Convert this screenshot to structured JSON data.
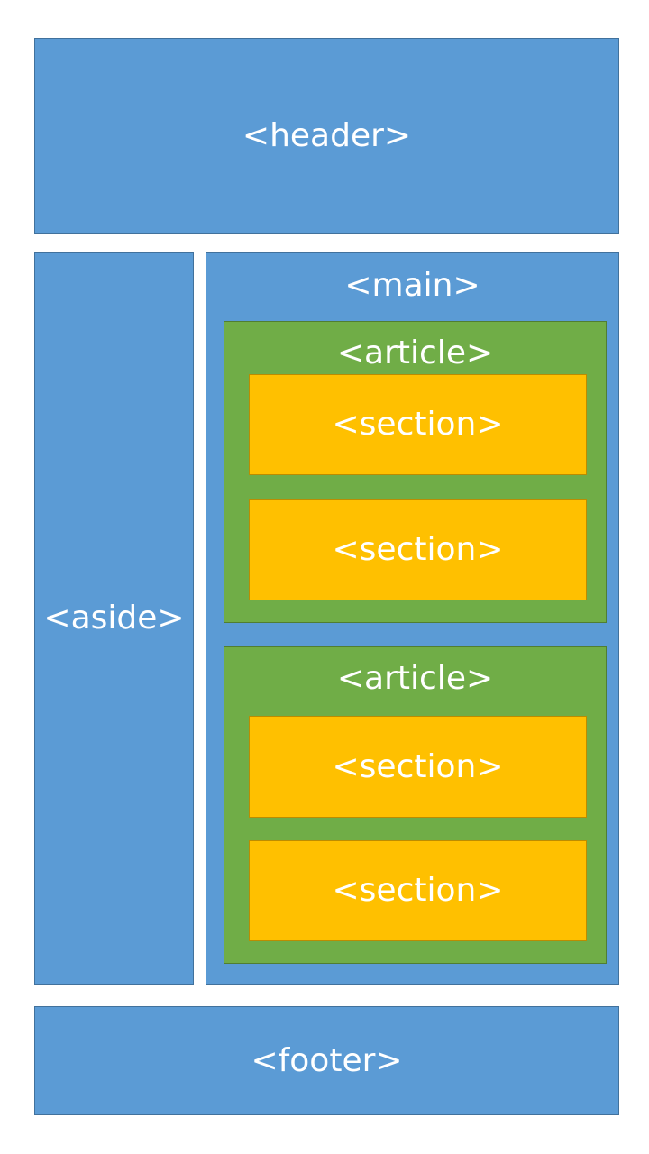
{
  "diagram": {
    "header": {
      "label": "<header>"
    },
    "aside": {
      "label": "<aside>"
    },
    "main": {
      "label": "<main>"
    },
    "articles": [
      {
        "label": "<article>",
        "sections": [
          "<section>",
          "<section>"
        ]
      },
      {
        "label": "<article>",
        "sections": [
          "<section>",
          "<section>"
        ]
      }
    ],
    "footer": {
      "label": "<footer>"
    }
  },
  "colors": {
    "container": "#5b9bd5",
    "article": "#70ad47",
    "section": "#ffc000",
    "text": "#ffffff"
  }
}
